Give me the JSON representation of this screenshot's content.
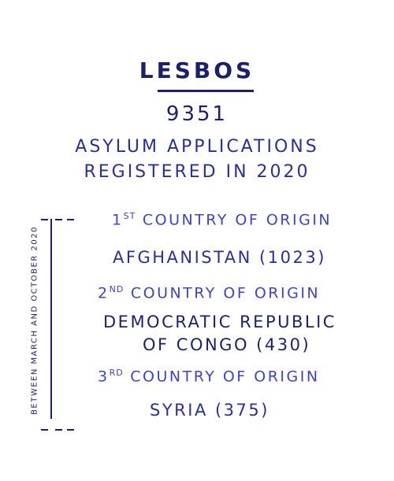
{
  "title": "LESBOS",
  "count": "9351",
  "subtitle_line1": "ASYLUM APPLICATIONS",
  "subtitle_line2": "REGISTERED IN 2020",
  "side_note": "BETWEEN MARCH AND OCTOBER 2020",
  "origins": [
    {
      "rank_number": "1",
      "rank_suffix": "ST",
      "rank_label": "COUNTRY OF ORIGIN",
      "country_line1": "AFGHANISTAN (1023)",
      "country_line2": ""
    },
    {
      "rank_number": "2",
      "rank_suffix": "ND",
      "rank_label": "COUNTRY OF ORIGIN",
      "country_line1": "DEMOCRATIC REPUBLIC",
      "country_line2": "OF CONGO (430)"
    },
    {
      "rank_number": "3",
      "rank_suffix": "RD",
      "rank_label": "COUNTRY OF ORIGIN",
      "country_line1": "SYRIA (375)",
      "country_line2": ""
    }
  ],
  "colors": {
    "dark_ink": "#1c1f6b",
    "mid_ink": "#2b2f97",
    "light_ink": "#3e44c4",
    "background": "#ffffff"
  }
}
